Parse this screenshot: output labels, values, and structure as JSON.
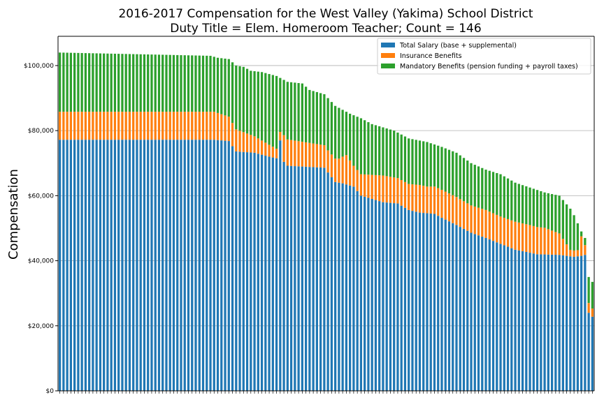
{
  "chart_data": {
    "type": "bar",
    "stacked": true,
    "title": "2016-2017 Compensation for the West Valley (Yakima) School District",
    "subtitle": "Duty Title = Elem. Homeroom Teacher; Count = 146",
    "xlabel": "",
    "ylabel": "Compensation",
    "ylim": [
      0,
      109000
    ],
    "yticks": [
      0,
      20000,
      40000,
      60000,
      80000,
      100000
    ],
    "ytick_labels": [
      "$0",
      "$20,000",
      "$40,000",
      "$60,000",
      "$80,000",
      "$100,000"
    ],
    "grid": "horizontal",
    "legend_position": "top-right",
    "bar_count": 146,
    "total_profile": [
      [
        0,
        104000
      ],
      [
        25,
        103400
      ],
      [
        41,
        103000
      ],
      [
        43,
        102400
      ],
      [
        46,
        102000
      ],
      [
        48,
        100000
      ],
      [
        50,
        99600
      ],
      [
        52,
        98400
      ],
      [
        55,
        98000
      ],
      [
        59,
        96800
      ],
      [
        62,
        95000
      ],
      [
        66,
        94500
      ],
      [
        68,
        92500
      ],
      [
        72,
        91200
      ],
      [
        75,
        87600
      ],
      [
        79,
        85200
      ],
      [
        82,
        83800
      ],
      [
        85,
        82000
      ],
      [
        88,
        81000
      ],
      [
        91,
        80000
      ],
      [
        95,
        77600
      ],
      [
        100,
        76500
      ],
      [
        104,
        75000
      ],
      [
        108,
        73200
      ],
      [
        112,
        70000
      ],
      [
        116,
        68000
      ],
      [
        120,
        66600
      ],
      [
        124,
        64000
      ],
      [
        128,
        62500
      ],
      [
        132,
        61000
      ],
      [
        136,
        60000
      ],
      [
        139,
        56000
      ],
      [
        140,
        54000
      ],
      [
        142,
        49000
      ],
      [
        143,
        47000
      ],
      [
        144,
        35000
      ],
      [
        145,
        33500
      ]
    ],
    "series": [
      {
        "name": "Total Salary (base + supplemental)",
        "color": "#1f77b4",
        "profile": [
          [
            0,
            77200
          ],
          [
            42,
            77200
          ],
          [
            46,
            76800
          ],
          [
            48,
            73600
          ],
          [
            53,
            73200
          ],
          [
            57,
            72000
          ],
          [
            59,
            71500
          ],
          [
            60,
            77000
          ],
          [
            61,
            70400
          ],
          [
            62,
            69200
          ],
          [
            72,
            68600
          ],
          [
            75,
            64200
          ],
          [
            77,
            63800
          ],
          [
            80,
            62800
          ],
          [
            82,
            60000
          ],
          [
            88,
            58000
          ],
          [
            92,
            57600
          ],
          [
            95,
            55600
          ],
          [
            98,
            54800
          ],
          [
            102,
            54400
          ],
          [
            104,
            53200
          ],
          [
            108,
            51000
          ],
          [
            112,
            48600
          ],
          [
            116,
            47000
          ],
          [
            120,
            45200
          ],
          [
            124,
            43400
          ],
          [
            130,
            42000
          ],
          [
            136,
            41800
          ],
          [
            140,
            41200
          ],
          [
            142,
            41500
          ],
          [
            143,
            41800
          ],
          [
            144,
            24000
          ],
          [
            145,
            22800
          ]
        ]
      },
      {
        "name": "Insurance Benefits",
        "color": "#ff7f0e",
        "profile": [
          [
            0,
            8600
          ],
          [
            42,
            8600
          ],
          [
            46,
            7500
          ],
          [
            60,
            2600
          ],
          [
            61,
            8200
          ],
          [
            73,
            6800
          ],
          [
            76,
            7400
          ],
          [
            78,
            9000
          ],
          [
            80,
            6400
          ],
          [
            82,
            6600
          ],
          [
            88,
            8200
          ],
          [
            92,
            7800
          ],
          [
            95,
            8000
          ],
          [
            98,
            8500
          ],
          [
            100,
            8200
          ],
          [
            104,
            8600
          ],
          [
            108,
            8600
          ],
          [
            112,
            8400
          ],
          [
            116,
            8600
          ],
          [
            120,
            8400
          ],
          [
            124,
            8600
          ],
          [
            128,
            8500
          ],
          [
            132,
            8200
          ],
          [
            136,
            6600
          ],
          [
            139,
            2000
          ],
          [
            141,
            1900
          ],
          [
            142,
            6000
          ],
          [
            143,
            3000
          ],
          [
            144,
            3000
          ],
          [
            145,
            2500
          ]
        ]
      },
      {
        "name": "Mandatory Benefits (pension funding + payroll taxes)",
        "color": "#2ca02c",
        "profile": "remainder of total_profile"
      }
    ]
  }
}
